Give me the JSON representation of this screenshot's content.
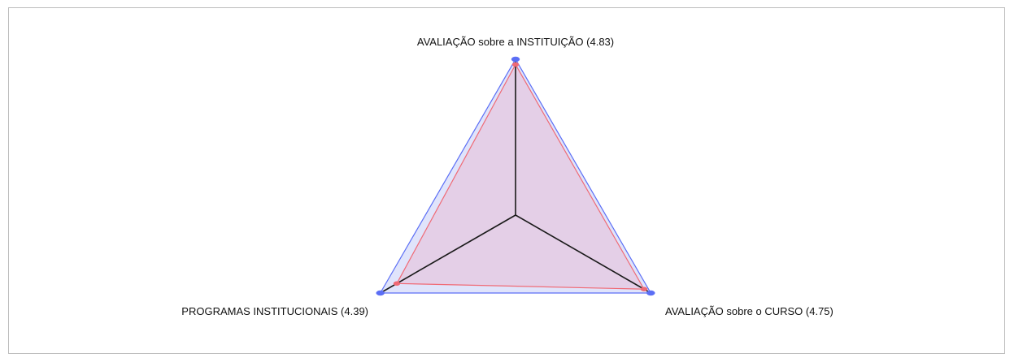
{
  "chart_data": {
    "type": "radar",
    "rmax": 5,
    "grid": false,
    "legend": "none",
    "axes": [
      {
        "label": "AVALIAÇÃO sobre a INSTITUIÇÃO (4.83)",
        "value": 4.83
      },
      {
        "label": "AVALIAÇÃO sobre o CURSO (4.75)",
        "value": 4.75
      },
      {
        "label": "PROGRAMAS INSTITUCIONAIS (4.39)",
        "value": 4.39
      }
    ],
    "series": [
      {
        "values": [
          5,
          5,
          5
        ],
        "stroke": "#5b6ef5",
        "fill": "#dde1fb"
      },
      {
        "values": [
          4.83,
          4.75,
          4.39
        ],
        "stroke": "#f06a75",
        "fill": "#e6c8e0"
      }
    ],
    "axis_color": "#1a1a1a"
  }
}
